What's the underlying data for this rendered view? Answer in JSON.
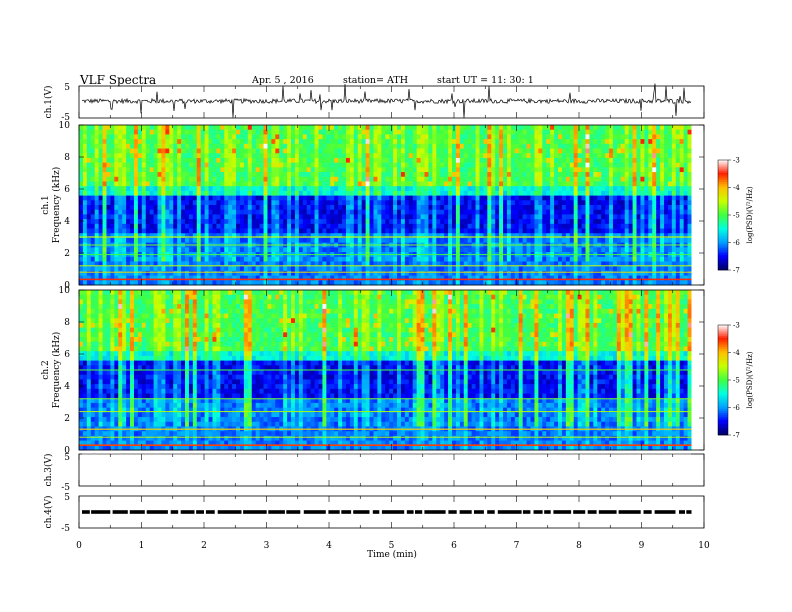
{
  "header": {
    "title": "VLF  Spectra",
    "date": "Apr. 5  , 2016",
    "station": "station= ATH",
    "start_ut": "start  UT  =   11: 30: 1"
  },
  "chart_data": [
    {
      "type": "line",
      "name": "ch1-waveform",
      "ylabel": "ch.1(V)",
      "ylim": [
        -5,
        5
      ],
      "y_ticks": [
        "5",
        "-5"
      ],
      "xlim": [
        0,
        10
      ],
      "baseline": 0.3,
      "color": "#000000"
    },
    {
      "type": "heatmap",
      "name": "ch1-spectrogram",
      "ylabel_channel": "ch.1",
      "ylabel": "Frequency  (kHz)",
      "ylim": [
        0,
        10
      ],
      "y_ticks": [
        "0",
        "2",
        "4",
        "6",
        "8",
        "10"
      ],
      "xlim": [
        0,
        9.8
      ],
      "colorbar": {
        "label": "log(PSD)(V²/Hz)",
        "range": [
          -7,
          -3
        ],
        "ticks": [
          "-3",
          "-4",
          "-5",
          "-6",
          "-7"
        ]
      }
    },
    {
      "type": "heatmap",
      "name": "ch2-spectrogram",
      "ylabel_channel": "ch.2",
      "ylabel": "Frequency  (kHz)",
      "ylim": [
        0,
        10
      ],
      "y_ticks": [
        "0",
        "2",
        "4",
        "6",
        "8",
        "10"
      ],
      "xlim": [
        0,
        9.8
      ],
      "colorbar": {
        "label": "log(PSD)(V²/Hz)",
        "range": [
          -7,
          -3
        ],
        "ticks": [
          "-3",
          "-4",
          "-5",
          "-6",
          "-7"
        ]
      }
    },
    {
      "type": "line",
      "name": "ch3-waveform",
      "ylabel": "ch.3(V)",
      "ylim": [
        -5,
        5
      ],
      "y_ticks": [
        "5",
        "-5"
      ],
      "xlim": [
        0,
        10
      ],
      "baseline": 5.0,
      "color": "#888888"
    },
    {
      "type": "line",
      "name": "ch4-waveform",
      "ylabel": "ch.4(V)",
      "ylim": [
        -5,
        5
      ],
      "y_ticks": [
        "5",
        "-5"
      ],
      "xlim": [
        0,
        10
      ],
      "baseline": 0.0,
      "color": "#000000"
    }
  ],
  "x_axis": {
    "label": "Time  (min)",
    "range": [
      0,
      10
    ],
    "ticks": [
      "0",
      "1",
      "2",
      "3",
      "4",
      "5",
      "6",
      "7",
      "8",
      "9",
      "10"
    ]
  },
  "colors": {
    "heatmap_scale": [
      "#000060",
      "#0000ff",
      "#00a0ff",
      "#00ffe0",
      "#40ff40",
      "#c8ff00",
      "#ffc000",
      "#ff2000",
      "#ffffff"
    ]
  }
}
